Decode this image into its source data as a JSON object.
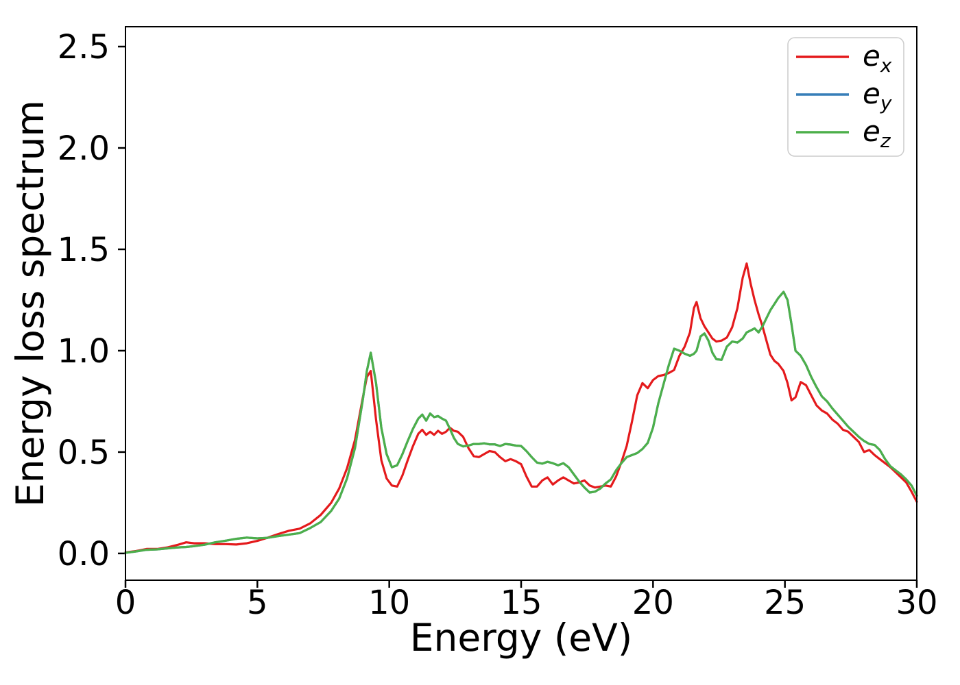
{
  "figure": {
    "background": "#ffffff"
  },
  "chart_data": {
    "type": "line",
    "title": "",
    "xlabel": "Energy (eV)",
    "ylabel": "Energy loss spectrum",
    "xlim": [
      0,
      30
    ],
    "ylim": [
      -0.132,
      2.598
    ],
    "xticks": [
      0,
      5,
      10,
      15,
      20,
      25,
      30
    ],
    "xtick_labels": [
      "0",
      "5",
      "10",
      "15",
      "20",
      "25",
      "30"
    ],
    "yticks": [
      0.0,
      0.5,
      1.0,
      1.5,
      2.0,
      2.5
    ],
    "ytick_labels": [
      "0.0",
      "0.5",
      "1.0",
      "1.5",
      "2.0",
      "2.5"
    ],
    "grid": false,
    "legend": {
      "position": "upper right",
      "items": [
        {
          "label": "e_x",
          "base": "e",
          "sub": "x",
          "color": "#e41a1c"
        },
        {
          "label": "e_y",
          "base": "e",
          "sub": "y",
          "color": "#377eb8"
        },
        {
          "label": "e_z",
          "base": "e",
          "sub": "z",
          "color": "#4daf4a"
        }
      ]
    },
    "x": [
      0,
      0.4,
      0.8,
      1.2,
      1.6,
      2.0,
      2.3,
      2.6,
      3.0,
      3.4,
      3.8,
      4.2,
      4.6,
      5.0,
      5.4,
      5.8,
      6.2,
      6.6,
      7.0,
      7.4,
      7.8,
      8.1,
      8.4,
      8.7,
      9.0,
      9.15,
      9.3,
      9.5,
      9.7,
      9.9,
      10.1,
      10.3,
      10.5,
      10.7,
      10.9,
      11.1,
      11.25,
      11.4,
      11.55,
      11.7,
      11.85,
      12.0,
      12.15,
      12.3,
      12.45,
      12.6,
      12.8,
      13.0,
      13.2,
      13.4,
      13.6,
      13.8,
      14.0,
      14.2,
      14.4,
      14.6,
      14.8,
      15.0,
      15.2,
      15.4,
      15.6,
      15.8,
      16.0,
      16.2,
      16.4,
      16.6,
      16.8,
      17.0,
      17.2,
      17.4,
      17.6,
      17.8,
      18.0,
      18.2,
      18.4,
      18.6,
      18.8,
      19.0,
      19.2,
      19.4,
      19.6,
      19.8,
      20.0,
      20.2,
      20.4,
      20.6,
      20.8,
      21.0,
      21.2,
      21.4,
      21.55,
      21.65,
      21.8,
      21.95,
      22.1,
      22.25,
      22.4,
      22.6,
      22.8,
      23.0,
      23.2,
      23.4,
      23.55,
      23.7,
      23.85,
      24.0,
      24.15,
      24.3,
      24.45,
      24.6,
      24.75,
      24.95,
      25.1,
      25.25,
      25.4,
      25.6,
      25.8,
      26.0,
      26.2,
      26.4,
      26.6,
      26.8,
      27.0,
      27.2,
      27.4,
      27.6,
      27.8,
      28.0,
      28.2,
      28.4,
      28.6,
      28.8,
      29.0,
      29.2,
      29.4,
      29.6,
      29.8,
      30.0
    ],
    "series": [
      {
        "name": "e_x",
        "color": "#e41a1c",
        "values": [
          0.005,
          0.012,
          0.022,
          0.022,
          0.03,
          0.043,
          0.055,
          0.05,
          0.05,
          0.046,
          0.046,
          0.044,
          0.05,
          0.062,
          0.078,
          0.096,
          0.112,
          0.122,
          0.148,
          0.19,
          0.25,
          0.32,
          0.42,
          0.56,
          0.77,
          0.87,
          0.9,
          0.66,
          0.46,
          0.37,
          0.335,
          0.33,
          0.385,
          0.46,
          0.53,
          0.59,
          0.61,
          0.585,
          0.6,
          0.585,
          0.605,
          0.59,
          0.6,
          0.62,
          0.605,
          0.6,
          0.575,
          0.52,
          0.48,
          0.475,
          0.49,
          0.505,
          0.5,
          0.475,
          0.455,
          0.465,
          0.455,
          0.44,
          0.38,
          0.33,
          0.33,
          0.36,
          0.375,
          0.34,
          0.36,
          0.375,
          0.36,
          0.345,
          0.35,
          0.36,
          0.335,
          0.325,
          0.33,
          0.335,
          0.33,
          0.38,
          0.45,
          0.53,
          0.65,
          0.78,
          0.84,
          0.815,
          0.855,
          0.875,
          0.88,
          0.89,
          0.905,
          0.975,
          1.02,
          1.09,
          1.21,
          1.24,
          1.16,
          1.12,
          1.09,
          1.06,
          1.045,
          1.05,
          1.065,
          1.115,
          1.21,
          1.36,
          1.43,
          1.33,
          1.25,
          1.18,
          1.12,
          1.05,
          0.98,
          0.95,
          0.935,
          0.9,
          0.84,
          0.755,
          0.77,
          0.845,
          0.83,
          0.78,
          0.73,
          0.705,
          0.69,
          0.66,
          0.64,
          0.61,
          0.6,
          0.575,
          0.55,
          0.5,
          0.51,
          0.485,
          0.465,
          0.445,
          0.425,
          0.4,
          0.375,
          0.35,
          0.305,
          0.255
        ]
      },
      {
        "name": "e_y",
        "color": "#377eb8",
        "hidden_behind": "e_z",
        "values": [
          0.003,
          0.01,
          0.018,
          0.02,
          0.025,
          0.03,
          0.032,
          0.036,
          0.043,
          0.055,
          0.063,
          0.072,
          0.078,
          0.074,
          0.077,
          0.086,
          0.093,
          0.1,
          0.125,
          0.155,
          0.21,
          0.27,
          0.37,
          0.52,
          0.76,
          0.9,
          0.99,
          0.84,
          0.62,
          0.49,
          0.425,
          0.435,
          0.49,
          0.555,
          0.615,
          0.665,
          0.685,
          0.655,
          0.69,
          0.672,
          0.678,
          0.665,
          0.655,
          0.615,
          0.57,
          0.54,
          0.528,
          0.532,
          0.54,
          0.54,
          0.543,
          0.538,
          0.538,
          0.53,
          0.54,
          0.537,
          0.532,
          0.53,
          0.505,
          0.475,
          0.448,
          0.443,
          0.452,
          0.445,
          0.435,
          0.445,
          0.425,
          0.39,
          0.355,
          0.325,
          0.3,
          0.305,
          0.32,
          0.345,
          0.365,
          0.41,
          0.445,
          0.475,
          0.485,
          0.495,
          0.515,
          0.545,
          0.62,
          0.74,
          0.835,
          0.93,
          1.01,
          1.0,
          0.985,
          0.975,
          0.985,
          1.0,
          1.07,
          1.085,
          1.05,
          0.99,
          0.958,
          0.955,
          1.02,
          1.045,
          1.04,
          1.06,
          1.09,
          1.1,
          1.11,
          1.09,
          1.12,
          1.16,
          1.2,
          1.23,
          1.26,
          1.29,
          1.25,
          1.13,
          1.0,
          0.975,
          0.93,
          0.87,
          0.82,
          0.775,
          0.75,
          0.715,
          0.685,
          0.655,
          0.625,
          0.6,
          0.575,
          0.555,
          0.54,
          0.535,
          0.51,
          0.465,
          0.43,
          0.41,
          0.39,
          0.365,
          0.335,
          0.285
        ]
      },
      {
        "name": "e_z",
        "color": "#4daf4a",
        "values": [
          0.003,
          0.01,
          0.018,
          0.02,
          0.025,
          0.03,
          0.032,
          0.036,
          0.043,
          0.055,
          0.063,
          0.072,
          0.078,
          0.074,
          0.077,
          0.086,
          0.093,
          0.1,
          0.125,
          0.155,
          0.21,
          0.27,
          0.37,
          0.52,
          0.76,
          0.9,
          0.99,
          0.84,
          0.62,
          0.49,
          0.425,
          0.435,
          0.49,
          0.555,
          0.615,
          0.665,
          0.685,
          0.655,
          0.69,
          0.672,
          0.678,
          0.665,
          0.655,
          0.615,
          0.57,
          0.54,
          0.528,
          0.532,
          0.54,
          0.54,
          0.543,
          0.538,
          0.538,
          0.53,
          0.54,
          0.537,
          0.532,
          0.53,
          0.505,
          0.475,
          0.448,
          0.443,
          0.452,
          0.445,
          0.435,
          0.445,
          0.425,
          0.39,
          0.355,
          0.325,
          0.3,
          0.305,
          0.32,
          0.345,
          0.365,
          0.41,
          0.445,
          0.475,
          0.485,
          0.495,
          0.515,
          0.545,
          0.62,
          0.74,
          0.835,
          0.93,
          1.01,
          1.0,
          0.985,
          0.975,
          0.985,
          1.0,
          1.07,
          1.085,
          1.05,
          0.99,
          0.958,
          0.955,
          1.02,
          1.045,
          1.04,
          1.06,
          1.09,
          1.1,
          1.11,
          1.09,
          1.12,
          1.16,
          1.2,
          1.23,
          1.26,
          1.29,
          1.25,
          1.13,
          1.0,
          0.975,
          0.93,
          0.87,
          0.82,
          0.775,
          0.75,
          0.715,
          0.685,
          0.655,
          0.625,
          0.6,
          0.575,
          0.555,
          0.54,
          0.535,
          0.51,
          0.465,
          0.43,
          0.41,
          0.39,
          0.365,
          0.335,
          0.285
        ]
      }
    ]
  }
}
